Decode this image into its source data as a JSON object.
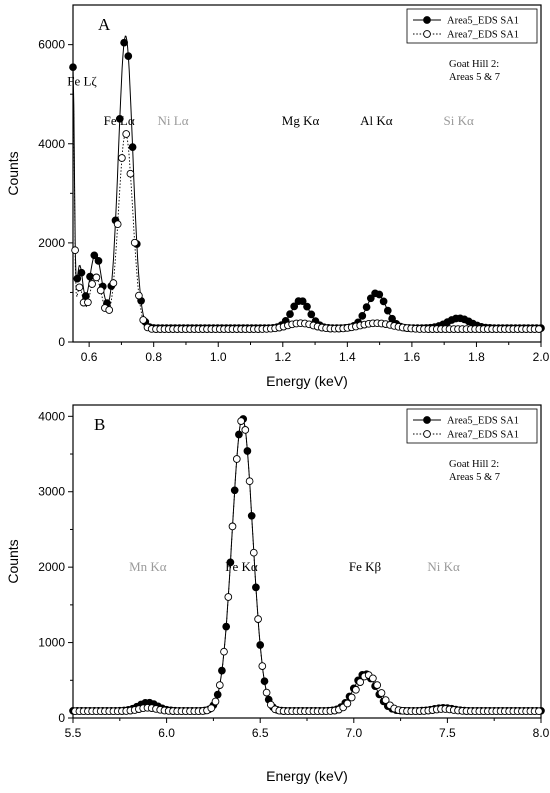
{
  "chart_data": [
    {
      "type": "scatter",
      "panel_label": "A",
      "xlabel": "Energy (keV)",
      "ylabel": "Counts",
      "xlim": [
        0.55,
        2.0
      ],
      "ylim": [
        0,
        6800
      ],
      "xticks": [
        0.6,
        0.8,
        1.0,
        1.2,
        1.4,
        1.6,
        1.8,
        2.0
      ],
      "xtick_labels": [
        "0.6",
        "0.8",
        "1.0",
        "1.2",
        "1.4",
        "1.6",
        "1.8",
        "2.0"
      ],
      "yticks": [
        0,
        2000,
        4000,
        6000
      ],
      "ytick_labels": [
        "0",
        "2000",
        "4000",
        "6000"
      ],
      "site_label": [
        "Goat Hill 2:",
        "Areas 5 & 7"
      ],
      "legend_position": "top-right",
      "series": [
        {
          "name": "Area5_EDS SA1",
          "marker": "filled-circle",
          "line": "solid",
          "color": "#000000",
          "peaks": [
            {
              "x": 0.55,
              "y": 5100,
              "w": 0.004
            },
            {
              "x": 0.57,
              "y": 1200,
              "w": 0.01
            },
            {
              "x": 0.62,
              "y": 1500,
              "w": 0.02
            },
            {
              "x": 0.713,
              "y": 5900,
              "w": 0.022
            },
            {
              "x": 1.255,
              "y": 560,
              "w": 0.028
            },
            {
              "x": 1.49,
              "y": 710,
              "w": 0.03
            },
            {
              "x": 1.745,
              "y": 200,
              "w": 0.035
            }
          ],
          "baseline": 280
        },
        {
          "name": "Area7_EDS SA1",
          "marker": "open-circle",
          "line": "dotted",
          "color": "#000000",
          "peaks": [
            {
              "x": 0.55,
              "y": 4900,
              "w": 0.004
            },
            {
              "x": 0.57,
              "y": 800,
              "w": 0.01
            },
            {
              "x": 0.62,
              "y": 1050,
              "w": 0.02
            },
            {
              "x": 0.713,
              "y": 3950,
              "w": 0.022
            },
            {
              "x": 1.255,
              "y": 120,
              "w": 0.04
            },
            {
              "x": 1.49,
              "y": 120,
              "w": 0.05
            }
          ],
          "baseline": 260
        }
      ],
      "annotations": [
        {
          "text": "Fe Lζ",
          "x": 0.578,
          "y": 5180,
          "color": "#000000"
        },
        {
          "text": "Fe Lα",
          "x": 0.693,
          "y": 4380,
          "color": "#000000"
        },
        {
          "text": "Ni Lα",
          "x": 0.86,
          "y": 4380,
          "color": "#9a9a9a"
        },
        {
          "text": "Mg Kα",
          "x": 1.255,
          "y": 4380,
          "color": "#000000"
        },
        {
          "text": "Al Kα",
          "x": 1.49,
          "y": 4380,
          "color": "#000000"
        },
        {
          "text": "Si Kα",
          "x": 1.745,
          "y": 4380,
          "color": "#9a9a9a"
        }
      ]
    },
    {
      "type": "scatter",
      "panel_label": "B",
      "xlabel": "Energy (keV)",
      "ylabel": "Counts",
      "xlim": [
        5.5,
        8.0
      ],
      "ylim": [
        0,
        4150
      ],
      "xticks": [
        5.5,
        6.0,
        6.5,
        7.0,
        7.5,
        8.0
      ],
      "xtick_labels": [
        "5.5",
        "6.0",
        "6.5",
        "7.0",
        "7.5",
        "8.0"
      ],
      "yticks": [
        0,
        1000,
        2000,
        3000,
        4000
      ],
      "ytick_labels": [
        "0",
        "1000",
        "2000",
        "3000",
        "4000"
      ],
      "site_label": [
        "Goat Hill 2:",
        "Areas 5 & 7"
      ],
      "legend_position": "top-right",
      "series": [
        {
          "name": "Area5_EDS SA1",
          "marker": "filled-circle",
          "line": "solid",
          "color": "#000000",
          "peaks": [
            {
              "x": 5.9,
              "y": 110,
              "w": 0.05
            },
            {
              "x": 6.405,
              "y": 3880,
              "w": 0.055
            },
            {
              "x": 7.06,
              "y": 490,
              "w": 0.06
            },
            {
              "x": 7.48,
              "y": 40,
              "w": 0.05
            }
          ],
          "baseline": 95
        },
        {
          "name": "Area7_EDS SA1",
          "marker": "open-circle",
          "line": "dotted",
          "color": "#000000",
          "peaks": [
            {
              "x": 5.9,
              "y": 45,
              "w": 0.05
            },
            {
              "x": 6.405,
              "y": 3880,
              "w": 0.055
            },
            {
              "x": 7.075,
              "y": 480,
              "w": 0.062
            },
            {
              "x": 7.48,
              "y": 30,
              "w": 0.05
            }
          ],
          "baseline": 90
        }
      ],
      "annotations": [
        {
          "text": "Mn Kα",
          "x": 5.9,
          "y": 1950,
          "color": "#9a9a9a"
        },
        {
          "text": "Fe Kα",
          "x": 6.4,
          "y": 1950,
          "color": "#000000"
        },
        {
          "text": "Fe Kβ",
          "x": 7.06,
          "y": 1950,
          "color": "#000000"
        },
        {
          "text": "Ni Kα",
          "x": 7.48,
          "y": 1950,
          "color": "#9a9a9a"
        }
      ]
    }
  ]
}
